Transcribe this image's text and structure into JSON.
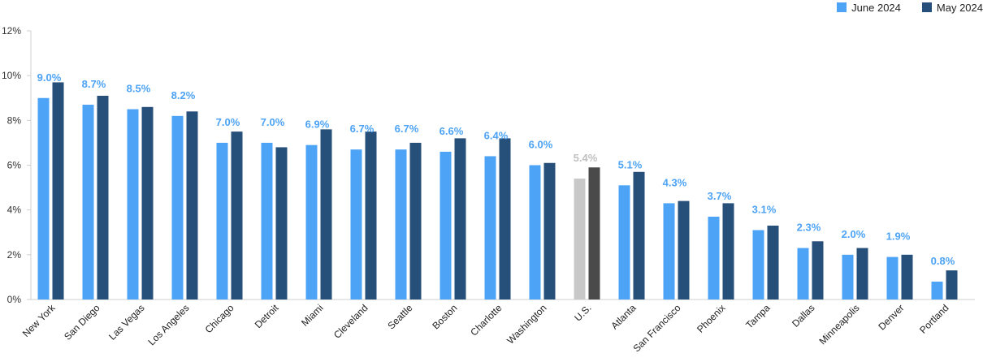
{
  "chart_data": {
    "type": "bar",
    "categories": [
      "New York",
      "San Diego",
      "Las Vegas",
      "Los Angeles",
      "Chicago",
      "Detroit",
      "Miami",
      "Cleveland",
      "Seattle",
      "Boston",
      "Charlotte",
      "Washington",
      "U.S.",
      "Atlanta",
      "San Francisco",
      "Phoenix",
      "Tampa",
      "Dallas",
      "Minneapolis",
      "Denver",
      "Portland"
    ],
    "series": [
      {
        "name": "June 2024",
        "values": [
          9.0,
          8.7,
          8.5,
          8.2,
          7.0,
          7.0,
          6.9,
          6.7,
          6.7,
          6.6,
          6.4,
          6.0,
          5.4,
          5.1,
          4.3,
          3.7,
          3.1,
          2.3,
          2.0,
          1.9,
          0.8
        ],
        "color": "#4da3f5",
        "highlight_color": "#c8c8c8"
      },
      {
        "name": "May 2024",
        "values": [
          9.7,
          9.1,
          8.6,
          8.4,
          7.5,
          6.8,
          7.6,
          7.5,
          7.0,
          7.2,
          7.2,
          6.1,
          5.9,
          5.7,
          4.4,
          4.3,
          3.3,
          2.6,
          2.3,
          2.0,
          1.3
        ],
        "color": "#264f7a",
        "highlight_color": "#4a4a4a"
      }
    ],
    "data_labels": [
      "9.0%",
      "8.7%",
      "8.5%",
      "8.2%",
      "7.0%",
      "7.0%",
      "6.9%",
      "6.7%",
      "6.7%",
      "6.6%",
      "6.4%",
      "6.0%",
      "5.4%",
      "5.1%",
      "4.3%",
      "3.7%",
      "3.1%",
      "2.3%",
      "2.0%",
      "1.9%",
      "0.8%"
    ],
    "highlight_category": "U.S.",
    "label_color": "#4da3f5",
    "highlight_label_color": "#c0c0c0",
    "y_ticks": [
      "0%",
      "2%",
      "4%",
      "6%",
      "8%",
      "10%",
      "12%"
    ],
    "ylim": [
      0,
      12
    ],
    "grid": false,
    "legend_position": "top-right"
  }
}
